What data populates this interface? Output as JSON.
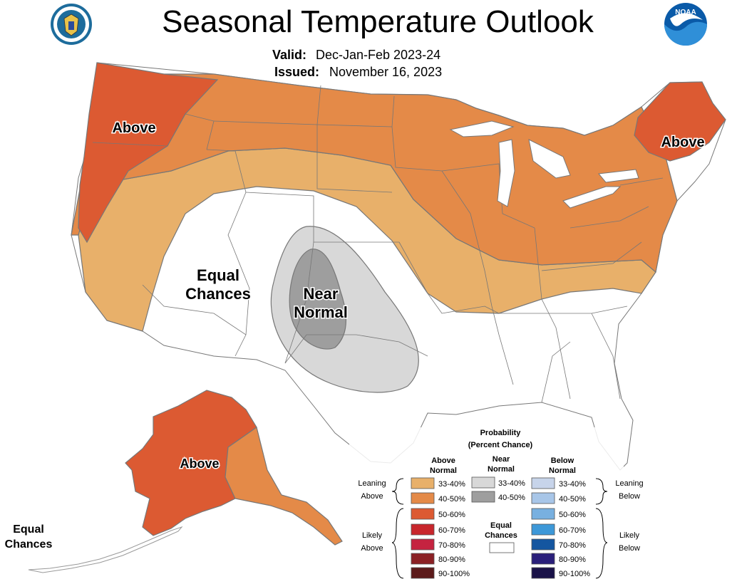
{
  "header": {
    "title": "Seasonal Temperature Outlook",
    "valid_label": "Valid:",
    "valid_value": "Dec-Jan-Feb 2023-24",
    "issued_label": "Issued:",
    "issued_value": "November 16, 2023"
  },
  "logos": {
    "left": "department-of-commerce-seal",
    "right_text": "NOAA"
  },
  "map_labels": {
    "above_west": "Above",
    "above_northeast": "Above",
    "equal_chances_l1": "Equal",
    "equal_chances_l2": "Chances",
    "near_normal_l1": "Near",
    "near_normal_l2": "Normal",
    "above_alaska": "Above",
    "alaska_ec_l1": "Equal",
    "alaska_ec_l2": "Chances"
  },
  "colors": {
    "above_33_40": "#e8b06a",
    "above_40_50": "#e48a48",
    "above_50_60": "#dc5a32",
    "above_60_70": "#c8262c",
    "above_70_80": "#c52340",
    "above_80_90": "#8b2024",
    "above_90_100": "#5c1a1a",
    "near_33_40": "#d8d8d8",
    "near_40_50": "#9e9e9e",
    "below_33_40": "#c7d4ea",
    "below_40_50": "#a8c6e8",
    "below_50_60": "#78b0e0",
    "below_60_70": "#3d98d8",
    "below_70_80": "#1456a0",
    "below_80_90": "#2a1f7a",
    "below_90_100": "#1a1248",
    "equal_chances": "#ffffff"
  },
  "legend": {
    "title_l1": "Probability",
    "title_l2": "(Percent Chance)",
    "col_above_l1": "Above",
    "col_above_l2": "Normal",
    "col_near_l1": "Near",
    "col_near_l2": "Normal",
    "col_below_l1": "Below",
    "col_below_l2": "Normal",
    "leaning_above_l1": "Leaning",
    "leaning_above_l2": "Above",
    "likely_above_l1": "Likely",
    "likely_above_l2": "Above",
    "leaning_below_l1": "Leaning",
    "leaning_below_l2": "Below",
    "likely_below_l1": "Likely",
    "likely_below_l2": "Below",
    "ec_l1": "Equal",
    "ec_l2": "Chances",
    "above_ranges": [
      "33-40%",
      "40-50%",
      "50-60%",
      "60-70%",
      "70-80%",
      "80-90%",
      "90-100%"
    ],
    "near_ranges": [
      "33-40%",
      "40-50%"
    ],
    "below_ranges": [
      "33-40%",
      "40-50%",
      "50-60%",
      "60-70%",
      "70-80%",
      "80-90%",
      "90-100%"
    ]
  }
}
